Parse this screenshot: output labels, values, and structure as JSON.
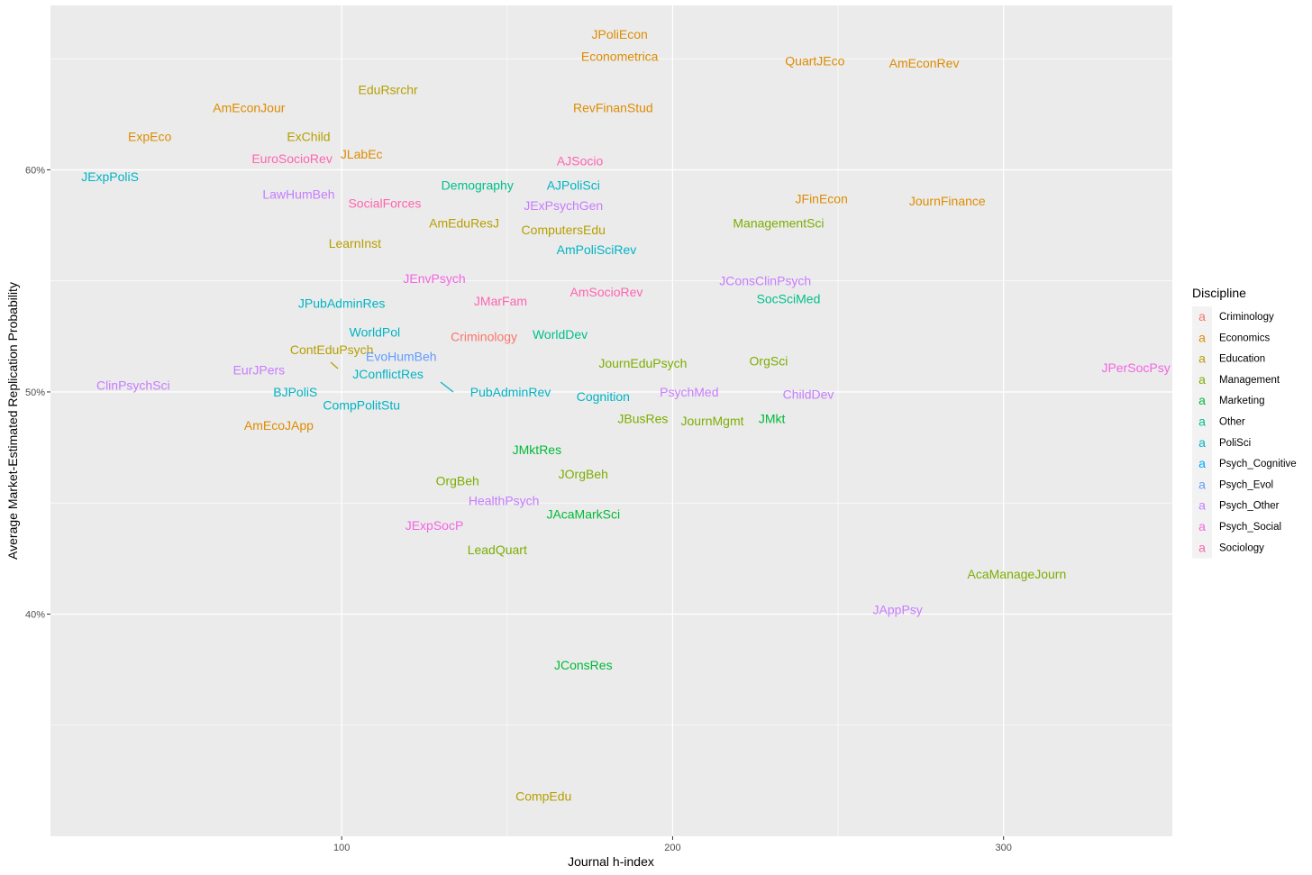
{
  "chart_data": {
    "type": "scatter",
    "title": "",
    "xlabel": "Journal h-index",
    "ylabel": "Average Market-Estimated Replication Probability",
    "xlim": [
      12,
      351
    ],
    "ylim": [
      0.3,
      0.674
    ],
    "x_ticks": [
      100,
      200,
      300
    ],
    "x_tick_labels": [
      "100",
      "200",
      "300"
    ],
    "y_ticks": [
      0.4,
      0.5,
      0.6
    ],
    "y_tick_labels": [
      "40%",
      "50%",
      "60%"
    ],
    "grid": true,
    "legend": {
      "title": "Discipline",
      "placement": "right",
      "entries": [
        {
          "name": "Criminology",
          "color": "#F8766D"
        },
        {
          "name": "Economics",
          "color": "#DE8C00"
        },
        {
          "name": "Education",
          "color": "#B79F00"
        },
        {
          "name": "Management",
          "color": "#7CAE00"
        },
        {
          "name": "Marketing",
          "color": "#00BA38"
        },
        {
          "name": "Other",
          "color": "#00C08B"
        },
        {
          "name": "PoliSci",
          "color": "#00B4C4"
        },
        {
          "name": "Psych_Cognitive",
          "color": "#00A5FF"
        },
        {
          "name": "Psych_Evol",
          "color": "#619CFF"
        },
        {
          "name": "Psych_Other",
          "color": "#C77CFF"
        },
        {
          "name": "Psych_Social",
          "color": "#F564E3"
        },
        {
          "name": "Sociology",
          "color": "#FF64B0"
        }
      ],
      "key_glyph": "a"
    },
    "points": [
      {
        "label": "JPoliEcon",
        "x": 184,
        "y": 0.661,
        "group": "Economics"
      },
      {
        "label": "Econometrica",
        "x": 184,
        "y": 0.651,
        "group": "Economics"
      },
      {
        "label": "QuartJEco",
        "x": 243,
        "y": 0.649,
        "group": "Economics"
      },
      {
        "label": "AmEconRev",
        "x": 276,
        "y": 0.648,
        "group": "Economics"
      },
      {
        "label": "EduRsrchr",
        "x": 114,
        "y": 0.636,
        "group": "Education"
      },
      {
        "label": "AmEconJour",
        "x": 72,
        "y": 0.628,
        "group": "Economics"
      },
      {
        "label": "RevFinanStud",
        "x": 182,
        "y": 0.628,
        "group": "Economics"
      },
      {
        "label": "ExpEco",
        "x": 42,
        "y": 0.615,
        "group": "Economics"
      },
      {
        "label": "ExChild",
        "x": 90,
        "y": 0.615,
        "group": "Education"
      },
      {
        "label": "JLabEc",
        "x": 106,
        "y": 0.607,
        "group": "Economics"
      },
      {
        "label": "EuroSocioRev",
        "x": 85,
        "y": 0.605,
        "group": "Sociology"
      },
      {
        "label": "AJSocio",
        "x": 172,
        "y": 0.604,
        "group": "Sociology"
      },
      {
        "label": "JExpPoliS",
        "x": 30,
        "y": 0.597,
        "group": "PoliSci"
      },
      {
        "label": "Demography",
        "x": 141,
        "y": 0.593,
        "group": "Other"
      },
      {
        "label": "AJPoliSci",
        "x": 170,
        "y": 0.593,
        "group": "PoliSci"
      },
      {
        "label": "LawHumBeh",
        "x": 87,
        "y": 0.589,
        "group": "Psych_Other"
      },
      {
        "label": "JFinEcon",
        "x": 245,
        "y": 0.587,
        "group": "Economics"
      },
      {
        "label": "JournFinance",
        "x": 283,
        "y": 0.586,
        "group": "Economics"
      },
      {
        "label": "SocialForces",
        "x": 113,
        "y": 0.585,
        "group": "Sociology"
      },
      {
        "label": "JExPsychGen",
        "x": 167,
        "y": 0.584,
        "group": "Psych_Other"
      },
      {
        "label": "AmEduResJ",
        "x": 137,
        "y": 0.576,
        "group": "Education"
      },
      {
        "label": "ManagementSci",
        "x": 232,
        "y": 0.576,
        "group": "Management"
      },
      {
        "label": "ComputersEdu",
        "x": 167,
        "y": 0.573,
        "group": "Education"
      },
      {
        "label": "LearnInst",
        "x": 104,
        "y": 0.567,
        "group": "Education"
      },
      {
        "label": "AmPoliSciRev",
        "x": 177,
        "y": 0.564,
        "group": "PoliSci"
      },
      {
        "label": "JEnvPsych",
        "x": 128,
        "y": 0.551,
        "group": "Psych_Social"
      },
      {
        "label": "JConsClinPsych",
        "x": 228,
        "y": 0.55,
        "group": "Psych_Other"
      },
      {
        "label": "AmSocioRev",
        "x": 180,
        "y": 0.545,
        "group": "Sociology"
      },
      {
        "label": "JMarFam",
        "x": 148,
        "y": 0.541,
        "group": "Sociology"
      },
      {
        "label": "SocSciMed",
        "x": 235,
        "y": 0.542,
        "group": "Other"
      },
      {
        "label": "JPubAdminRes",
        "x": 100,
        "y": 0.54,
        "group": "PoliSci"
      },
      {
        "label": "WorldPol",
        "x": 110,
        "y": 0.527,
        "group": "PoliSci"
      },
      {
        "label": "Criminology",
        "x": 143,
        "y": 0.525,
        "group": "Criminology"
      },
      {
        "label": "WorldDev",
        "x": 166,
        "y": 0.526,
        "group": "Other"
      },
      {
        "label": "ContEduPsych",
        "x": 97,
        "y": 0.519,
        "group": "Education"
      },
      {
        "label": "EvoHumBeh",
        "x": 118,
        "y": 0.516,
        "group": "Psych_Evol"
      },
      {
        "label": "JournEduPsych",
        "x": 191,
        "y": 0.513,
        "group": "Management"
      },
      {
        "label": "OrgSci",
        "x": 229,
        "y": 0.514,
        "group": "Management"
      },
      {
        "label": "JPerSocPsy",
        "x": 340,
        "y": 0.511,
        "group": "Psych_Social"
      },
      {
        "label": "EurJPers",
        "x": 75,
        "y": 0.51,
        "group": "Psych_Other"
      },
      {
        "label": "JConflictRes",
        "x": 114,
        "y": 0.508,
        "group": "PoliSci"
      },
      {
        "label": "ClinPsychSci",
        "x": 37,
        "y": 0.503,
        "group": "Psych_Other"
      },
      {
        "label": "BJPoliS",
        "x": 86,
        "y": 0.5,
        "group": "PoliSci"
      },
      {
        "label": "PubAdminRev",
        "x": 151,
        "y": 0.5,
        "group": "PoliSci"
      },
      {
        "label": "PsychMed",
        "x": 205,
        "y": 0.5,
        "group": "Psych_Other"
      },
      {
        "label": "Cognition",
        "x": 179,
        "y": 0.498,
        "group": "PoliSci"
      },
      {
        "label": "ChildDev",
        "x": 241,
        "y": 0.499,
        "group": "Psych_Other"
      },
      {
        "label": "CompPolitStu",
        "x": 106,
        "y": 0.494,
        "group": "PoliSci"
      },
      {
        "label": "JBusRes",
        "x": 191,
        "y": 0.488,
        "group": "Management"
      },
      {
        "label": "JournMgmt",
        "x": 212,
        "y": 0.487,
        "group": "Management"
      },
      {
        "label": "JMkt",
        "x": 230,
        "y": 0.488,
        "group": "Marketing"
      },
      {
        "label": "AmEcoJApp",
        "x": 81,
        "y": 0.485,
        "group": "Economics"
      },
      {
        "label": "JMktRes",
        "x": 159,
        "y": 0.474,
        "group": "Marketing"
      },
      {
        "label": "JOrgBeh",
        "x": 173,
        "y": 0.463,
        "group": "Management"
      },
      {
        "label": "OrgBeh",
        "x": 135,
        "y": 0.46,
        "group": "Management"
      },
      {
        "label": "HealthPsych",
        "x": 149,
        "y": 0.451,
        "group": "Psych_Other"
      },
      {
        "label": "JAcaMarkSci",
        "x": 173,
        "y": 0.445,
        "group": "Marketing"
      },
      {
        "label": "JExpSocP",
        "x": 128,
        "y": 0.44,
        "group": "Psych_Social"
      },
      {
        "label": "LeadQuart",
        "x": 147,
        "y": 0.429,
        "group": "Management"
      },
      {
        "label": "AcaManageJourn",
        "x": 304,
        "y": 0.418,
        "group": "Management"
      },
      {
        "label": "JAppPsy",
        "x": 268,
        "y": 0.402,
        "group": "Psych_Other"
      },
      {
        "label": "JConsRes",
        "x": 173,
        "y": 0.377,
        "group": "Marketing"
      },
      {
        "label": "CompEdu",
        "x": 161,
        "y": 0.318,
        "group": "Education"
      }
    ]
  }
}
